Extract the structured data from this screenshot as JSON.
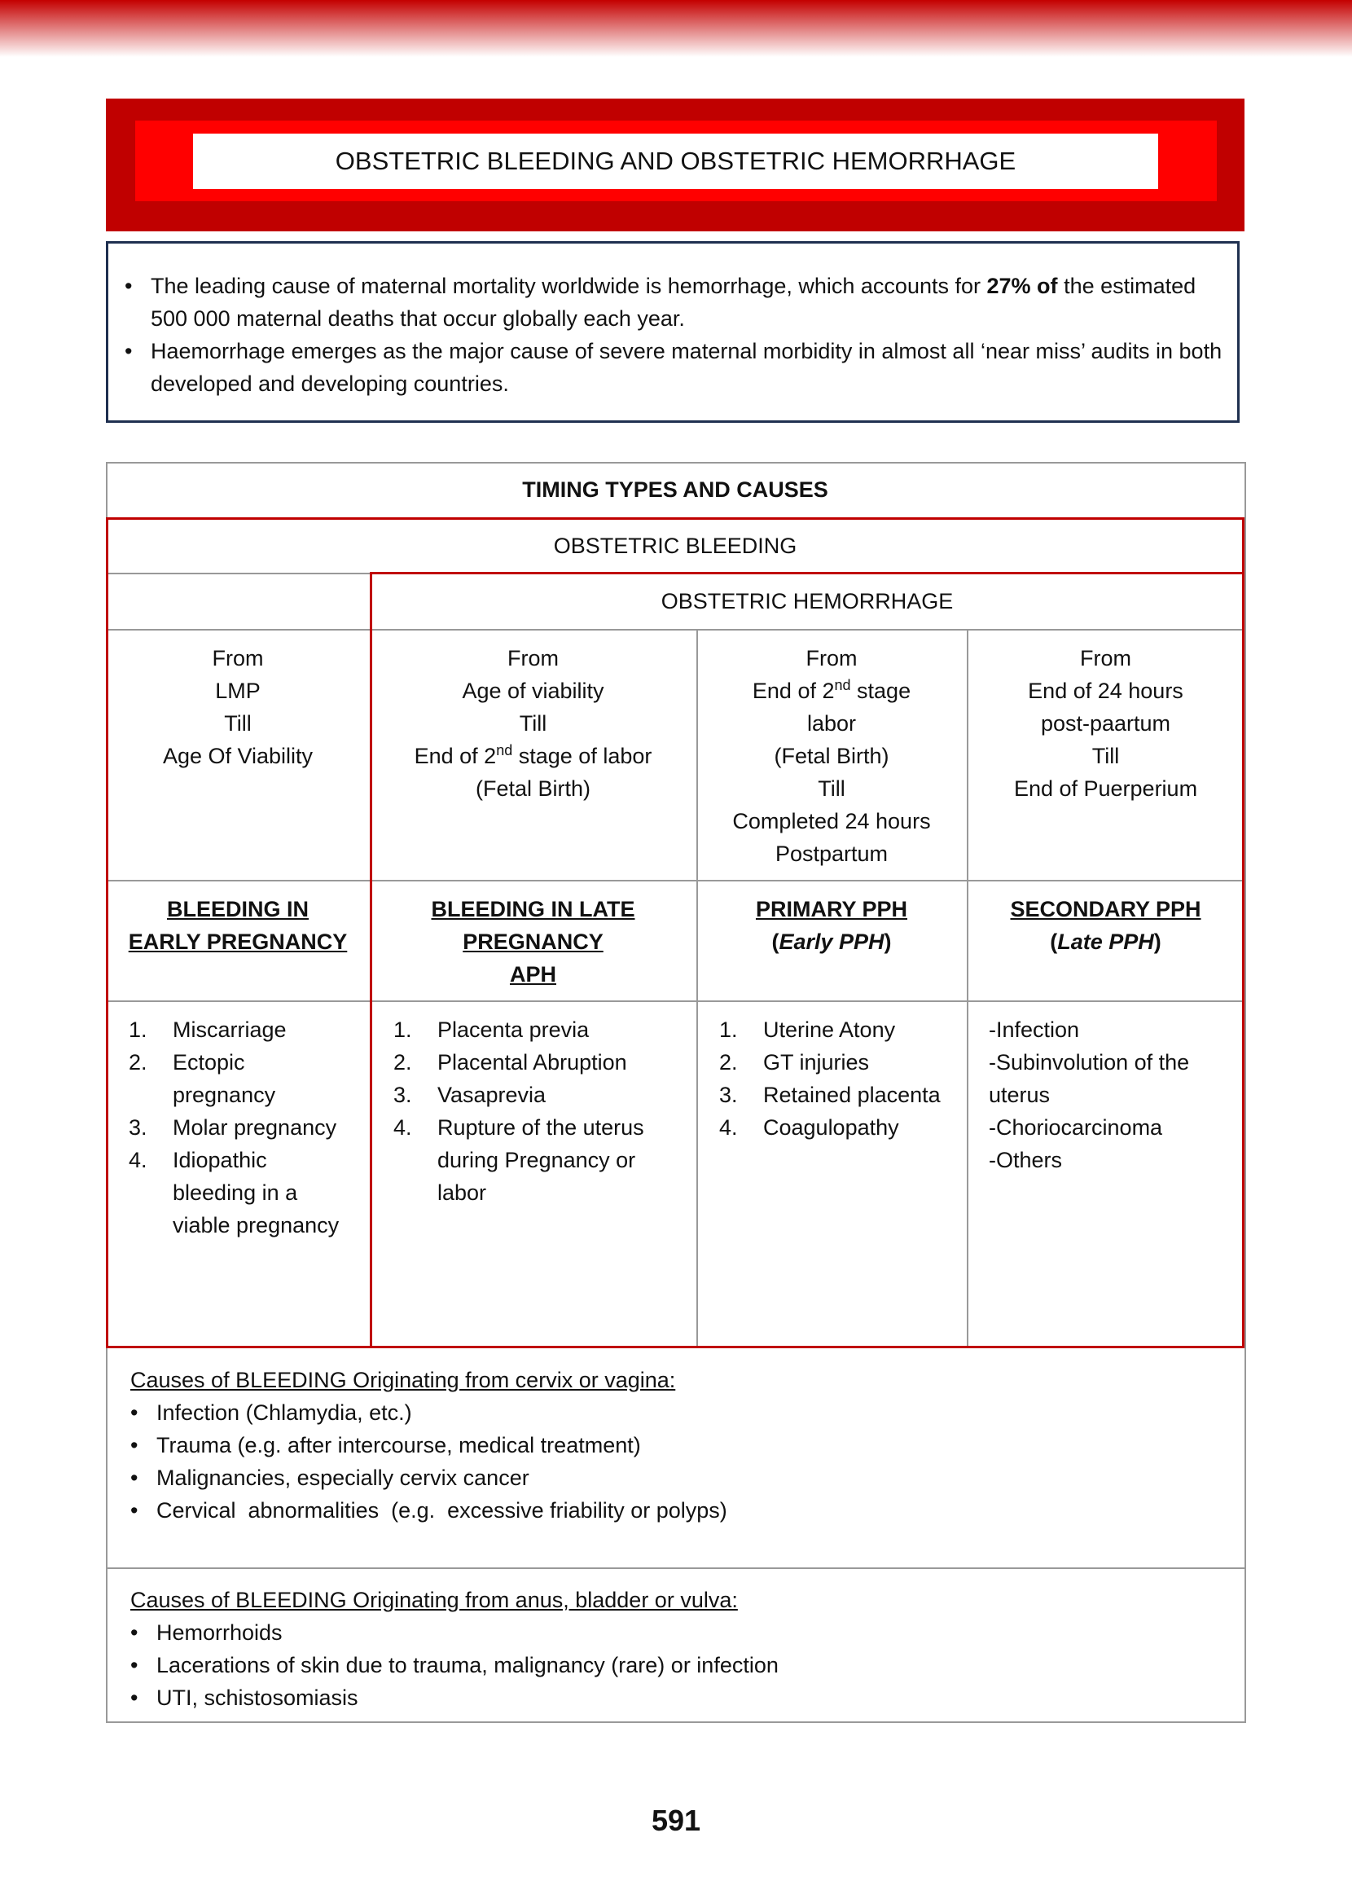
{
  "header": {
    "title": "OBSTETRIC BLEEDING AND OBSTETRIC HEMORRHAGE"
  },
  "intro": {
    "bullet": "•",
    "bullets": [
      {
        "text": "The leading cause of maternal mortality worldwide is hemorrhage, which accounts for",
        "bold": "27% of",
        "after": "the estimated 500 000 maternal deaths that occur globally each year."
      },
      {
        "text": "Haemorrhage emerges as the major cause of severe maternal morbidity in almost all ‘near miss’ audits in both developed and developing countries."
      }
    ]
  },
  "table": {
    "title": "TIMING TYPES AND CAUSES",
    "bleeding": "OBSTETRIC BLEEDING",
    "hemorrhage": "OBSTETRIC HEMORRHAGE",
    "columns": [
      {
        "timing": [
          "From",
          "LMP",
          "Till",
          "Age Of Viability"
        ],
        "heading": [
          "BLEEDING IN",
          "EARLY PREGNANCY"
        ],
        "causes": [
          {
            "num": "1.",
            "text": "Miscarriage"
          },
          {
            "num": "2.",
            "text": "Ectopic pregnancy"
          },
          {
            "num": "3.",
            "text": "Molar pregnancy"
          },
          {
            "num": "4.",
            "text": "Idiopathic bleeding in a viable pregnancy"
          }
        ]
      },
      {
        "timing": [
          "From",
          "Age of viability",
          "Till",
          [
            "End of 2",
            "nd",
            "stage of labor"
          ],
          "(Fetal Birth)"
        ],
        "heading": [
          "BLEEDING IN LATE",
          "PREGNANCY",
          "APH"
        ],
        "causes": [
          {
            "num": "1.",
            "text": "Placenta previa"
          },
          {
            "num": "2.",
            "text": "Placental Abruption"
          },
          {
            "num": "3.",
            "text": "Vasaprevia"
          },
          {
            "num": "4.",
            "text": "Rupture of the uterus during Pregnancy or labor"
          }
        ]
      },
      {
        "timing": [
          "From",
          [
            "End of 2",
            "nd",
            "stage"
          ],
          "labor",
          "(Fetal Birth)",
          "Till",
          "Completed 24 hours",
          "Postpartum"
        ],
        "heading": [
          "PRIMARY PPH"
        ],
        "sub": [
          "(",
          "Early PPH",
          ")"
        ],
        "causes": [
          {
            "num": "1.",
            "text": "Uterine Atony"
          },
          {
            "num": "2.",
            "text": "GT injuries"
          },
          {
            "num": "3.",
            "text": "Retained placenta"
          },
          {
            "num": "4.",
            "text": "Coagulopathy"
          }
        ]
      },
      {
        "timing": [
          "From",
          "End of 24 hours",
          "post-paartum",
          "Till",
          "End of Puerperium"
        ],
        "heading": [
          "SECONDARY PPH"
        ],
        "sub": [
          "(",
          "Late PPH",
          ")"
        ],
        "causes": [
          "-Infection",
          "-Subinvolution of the uterus",
          "-Choriocarcinoma",
          "-Others"
        ]
      }
    ]
  },
  "sections": [
    {
      "title": "Causes of BLEEDING Originating from cervix or vagina:",
      "items": [
        "Infection (Chlamydia, etc.)",
        "Trauma (e.g. after intercourse, medical treatment)",
        "Malignancies, especially cervix cancer",
        "Cervical  abnormalities  (e.g.  excessive friability or polyps)"
      ]
    },
    {
      "title": "Causes of BLEEDING Originating from anus, bladder or vulva:",
      "items": [
        "Hemorrhoids",
        "Lacerations of skin due to trauma, malignancy (rare) or infection",
        "UTI, schistosomiasis"
      ]
    }
  ],
  "page": {
    "number": "591"
  }
}
